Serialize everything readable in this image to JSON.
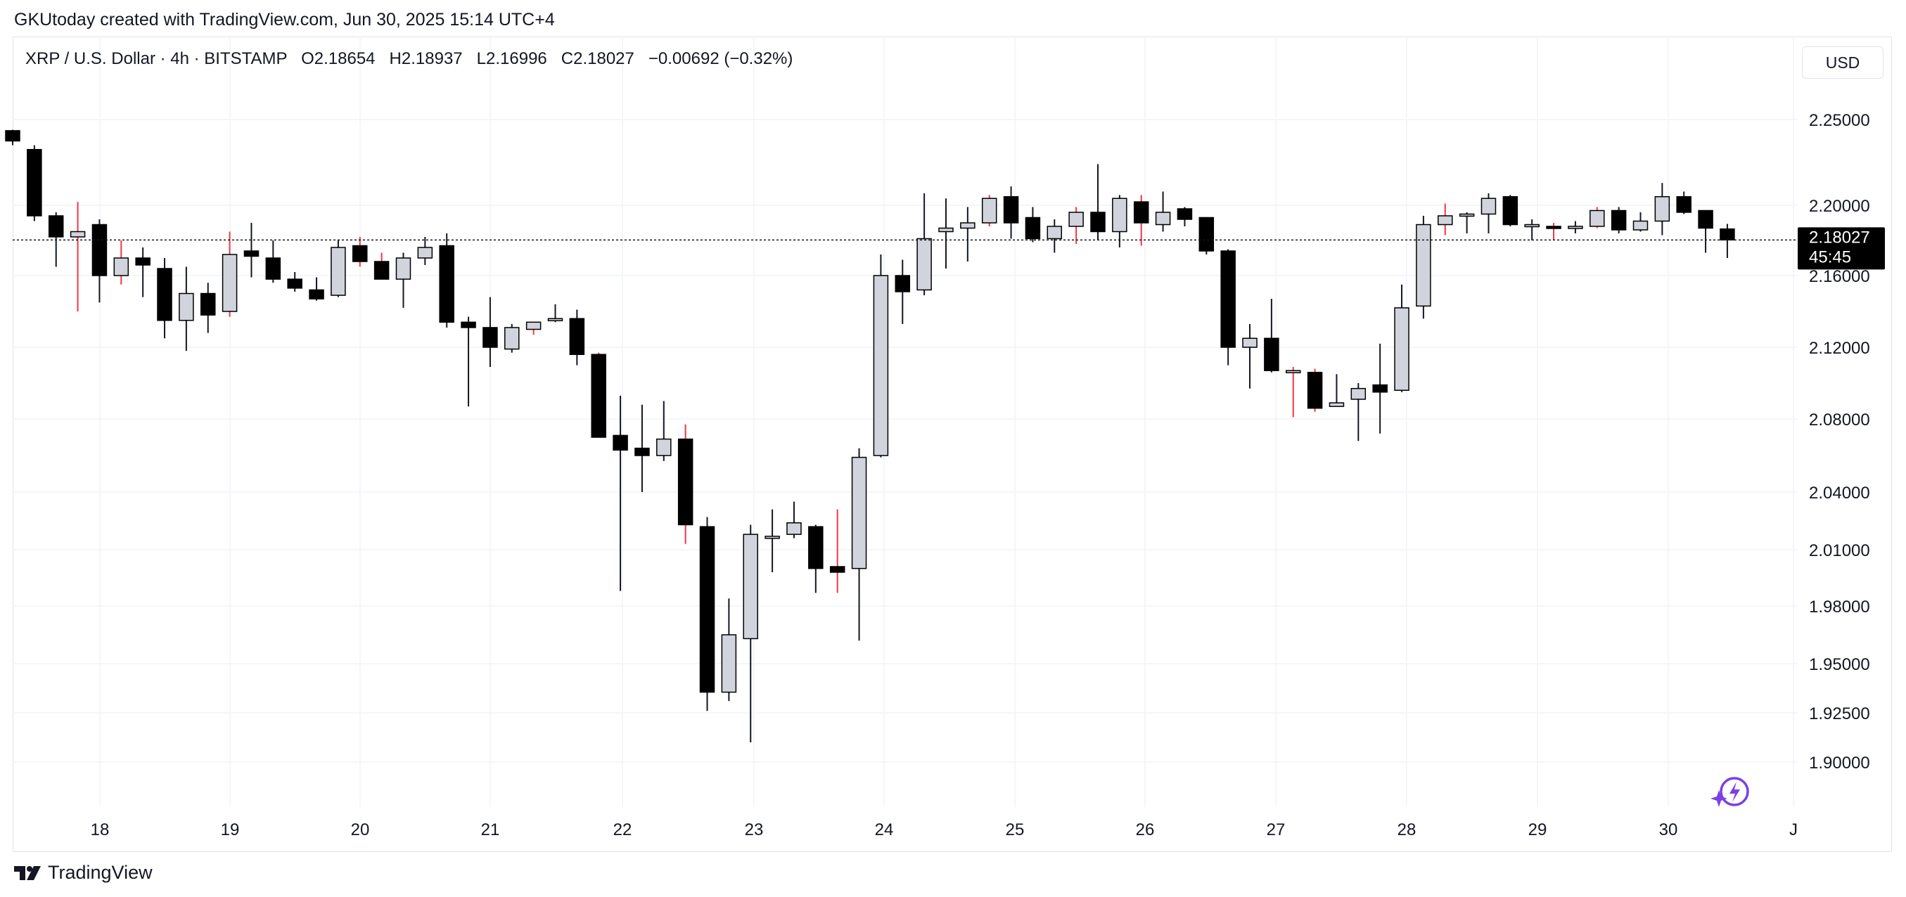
{
  "header": {
    "created_note": "GKUtoday created with TradingView.com, Jun 30, 2025 15:14 UTC+4"
  },
  "legend": {
    "symbol": "XRP / U.S. Dollar · 4h · BITSTAMP",
    "open": "O2.18654",
    "high": "H2.18937",
    "low": "L2.16996",
    "close": "C2.18027",
    "change": "−0.00692 (−0.32%)"
  },
  "currency_button": {
    "label": "USD"
  },
  "footer": {
    "brand": "TradingView",
    "logo_icon": "tradingview-logo-icon"
  },
  "colors": {
    "up_fill": "#d1d4dc",
    "down_fill": "#000000",
    "wick": "#131722",
    "wick_alt": "#f23645",
    "grid": "#f0f3fa",
    "price_line": "#131722",
    "price_tag_bg": "#000000",
    "assistant_icon": "#7b3fe4"
  },
  "assistant_icon": "sparkle-lightning-icon",
  "current_price": {
    "value": "2.18027",
    "countdown": "45:45"
  },
  "chart_data": {
    "type": "candlestick",
    "interval": "4h",
    "y_ticks": [
      "2.25000",
      "2.20000",
      "2.16000",
      "2.12000",
      "2.08000",
      "2.04000",
      "2.01000",
      "1.98000",
      "1.95000",
      "1.92500",
      "1.90000"
    ],
    "x_ticks": [
      "18",
      "19",
      "20",
      "21",
      "22",
      "23",
      "24",
      "25",
      "26",
      "27",
      "28",
      "29",
      "30",
      "J"
    ],
    "grid": true,
    "candles": [
      {
        "o": 2.2435,
        "h": 2.244,
        "l": 2.235,
        "c": 2.2375
      },
      {
        "o": 2.2325,
        "h": 2.235,
        "l": 2.191,
        "c": 2.194
      },
      {
        "o": 2.194,
        "h": 2.196,
        "l": 2.165,
        "c": 2.182
      },
      {
        "o": 2.182,
        "h": 2.202,
        "l": 2.14,
        "c": 2.185
      },
      {
        "o": 2.189,
        "h": 2.192,
        "l": 2.145,
        "c": 2.16
      },
      {
        "o": 2.16,
        "h": 2.18,
        "l": 2.155,
        "c": 2.17
      },
      {
        "o": 2.17,
        "h": 2.176,
        "l": 2.148,
        "c": 2.166
      },
      {
        "o": 2.164,
        "h": 2.17,
        "l": 2.125,
        "c": 2.135
      },
      {
        "o": 2.135,
        "h": 2.165,
        "l": 2.118,
        "c": 2.15
      },
      {
        "o": 2.15,
        "h": 2.156,
        "l": 2.128,
        "c": 2.138
      },
      {
        "o": 2.14,
        "h": 2.185,
        "l": 2.137,
        "c": 2.172
      },
      {
        "o": 2.174,
        "h": 2.19,
        "l": 2.159,
        "c": 2.171
      },
      {
        "o": 2.17,
        "h": 2.18,
        "l": 2.156,
        "c": 2.158
      },
      {
        "o": 2.158,
        "h": 2.162,
        "l": 2.151,
        "c": 2.153
      },
      {
        "o": 2.152,
        "h": 2.159,
        "l": 2.146,
        "c": 2.147
      },
      {
        "o": 2.149,
        "h": 2.18,
        "l": 2.148,
        "c": 2.176
      },
      {
        "o": 2.177,
        "h": 2.182,
        "l": 2.165,
        "c": 2.168
      },
      {
        "o": 2.168,
        "h": 2.173,
        "l": 2.158,
        "c": 2.158
      },
      {
        "o": 2.158,
        "h": 2.173,
        "l": 2.142,
        "c": 2.17
      },
      {
        "o": 2.17,
        "h": 2.182,
        "l": 2.166,
        "c": 2.176
      },
      {
        "o": 2.177,
        "h": 2.184,
        "l": 2.131,
        "c": 2.134
      },
      {
        "o": 2.134,
        "h": 2.137,
        "l": 2.087,
        "c": 2.131
      },
      {
        "o": 2.131,
        "h": 2.148,
        "l": 2.109,
        "c": 2.12
      },
      {
        "o": 2.119,
        "h": 2.133,
        "l": 2.117,
        "c": 2.131
      },
      {
        "o": 2.13,
        "h": 2.134,
        "l": 2.127,
        "c": 2.134
      },
      {
        "o": 2.135,
        "h": 2.144,
        "l": 2.134,
        "c": 2.136
      },
      {
        "o": 2.136,
        "h": 2.141,
        "l": 2.11,
        "c": 2.116
      },
      {
        "o": 2.116,
        "h": 2.117,
        "l": 2.07,
        "c": 2.07
      },
      {
        "o": 2.071,
        "h": 2.093,
        "l": 1.988,
        "c": 2.063
      },
      {
        "o": 2.064,
        "h": 2.088,
        "l": 2.04,
        "c": 2.06
      },
      {
        "o": 2.06,
        "h": 2.09,
        "l": 2.057,
        "c": 2.069
      },
      {
        "o": 2.069,
        "h": 2.077,
        "l": 2.013,
        "c": 2.023
      },
      {
        "o": 2.022,
        "h": 2.027,
        "l": 1.926,
        "c": 1.9355
      },
      {
        "o": 1.9355,
        "h": 1.984,
        "l": 1.931,
        "c": 1.965
      },
      {
        "o": 1.963,
        "h": 2.023,
        "l": 1.91,
        "c": 2.018
      },
      {
        "o": 2.016,
        "h": 2.031,
        "l": 1.998,
        "c": 2.017
      },
      {
        "o": 2.018,
        "h": 2.035,
        "l": 2.016,
        "c": 2.024
      },
      {
        "o": 2.022,
        "h": 2.023,
        "l": 1.987,
        "c": 2.0
      },
      {
        "o": 2.001,
        "h": 2.031,
        "l": 1.987,
        "c": 1.998
      },
      {
        "o": 2.0,
        "h": 2.064,
        "l": 1.962,
        "c": 2.059
      },
      {
        "o": 2.06,
        "h": 2.172,
        "l": 2.059,
        "c": 2.16
      },
      {
        "o": 2.16,
        "h": 2.169,
        "l": 2.133,
        "c": 2.151
      },
      {
        "o": 2.152,
        "h": 2.207,
        "l": 2.149,
        "c": 2.181
      },
      {
        "o": 2.185,
        "h": 2.204,
        "l": 2.164,
        "c": 2.187
      },
      {
        "o": 2.187,
        "h": 2.199,
        "l": 2.168,
        "c": 2.19
      },
      {
        "o": 2.19,
        "h": 2.206,
        "l": 2.188,
        "c": 2.204
      },
      {
        "o": 2.205,
        "h": 2.211,
        "l": 2.181,
        "c": 2.19
      },
      {
        "o": 2.193,
        "h": 2.199,
        "l": 2.179,
        "c": 2.181
      },
      {
        "o": 2.181,
        "h": 2.192,
        "l": 2.173,
        "c": 2.188
      },
      {
        "o": 2.188,
        "h": 2.199,
        "l": 2.178,
        "c": 2.196
      },
      {
        "o": 2.196,
        "h": 2.224,
        "l": 2.18,
        "c": 2.185
      },
      {
        "o": 2.185,
        "h": 2.206,
        "l": 2.176,
        "c": 2.204
      },
      {
        "o": 2.202,
        "h": 2.206,
        "l": 2.177,
        "c": 2.19
      },
      {
        "o": 2.189,
        "h": 2.208,
        "l": 2.185,
        "c": 2.196
      },
      {
        "o": 2.198,
        "h": 2.199,
        "l": 2.188,
        "c": 2.192
      },
      {
        "o": 2.193,
        "h": 2.193,
        "l": 2.172,
        "c": 2.174
      },
      {
        "o": 2.174,
        "h": 2.175,
        "l": 2.11,
        "c": 2.12
      },
      {
        "o": 2.12,
        "h": 2.133,
        "l": 2.097,
        "c": 2.125
      },
      {
        "o": 2.125,
        "h": 2.147,
        "l": 2.106,
        "c": 2.107
      },
      {
        "o": 2.107,
        "h": 2.109,
        "l": 2.081,
        "c": 2.107
      },
      {
        "o": 2.106,
        "h": 2.108,
        "l": 2.084,
        "c": 2.086
      },
      {
        "o": 2.087,
        "h": 2.105,
        "l": 2.087,
        "c": 2.089
      },
      {
        "o": 2.091,
        "h": 2.1,
        "l": 2.068,
        "c": 2.097
      },
      {
        "o": 2.099,
        "h": 2.122,
        "l": 2.072,
        "c": 2.095
      },
      {
        "o": 2.096,
        "h": 2.155,
        "l": 2.095,
        "c": 2.142
      },
      {
        "o": 2.143,
        "h": 2.194,
        "l": 2.136,
        "c": 2.189
      },
      {
        "o": 2.189,
        "h": 2.201,
        "l": 2.183,
        "c": 2.194
      },
      {
        "o": 2.194,
        "h": 2.196,
        "l": 2.184,
        "c": 2.195
      },
      {
        "o": 2.195,
        "h": 2.207,
        "l": 2.184,
        "c": 2.204
      },
      {
        "o": 2.205,
        "h": 2.206,
        "l": 2.188,
        "c": 2.189
      },
      {
        "o": 2.189,
        "h": 2.192,
        "l": 2.18,
        "c": 2.189
      },
      {
        "o": 2.188,
        "h": 2.19,
        "l": 2.18,
        "c": 2.187
      },
      {
        "o": 2.187,
        "h": 2.191,
        "l": 2.184,
        "c": 2.188
      },
      {
        "o": 2.188,
        "h": 2.199,
        "l": 2.187,
        "c": 2.197
      },
      {
        "o": 2.197,
        "h": 2.199,
        "l": 2.184,
        "c": 2.186
      },
      {
        "o": 2.186,
        "h": 2.196,
        "l": 2.185,
        "c": 2.191
      },
      {
        "o": 2.191,
        "h": 2.213,
        "l": 2.183,
        "c": 2.205
      },
      {
        "o": 2.205,
        "h": 2.208,
        "l": 2.195,
        "c": 2.196
      },
      {
        "o": 2.197,
        "h": 2.197,
        "l": 2.173,
        "c": 2.187
      },
      {
        "o": 2.1865,
        "h": 2.1894,
        "l": 2.17,
        "c": 2.1803
      }
    ]
  }
}
